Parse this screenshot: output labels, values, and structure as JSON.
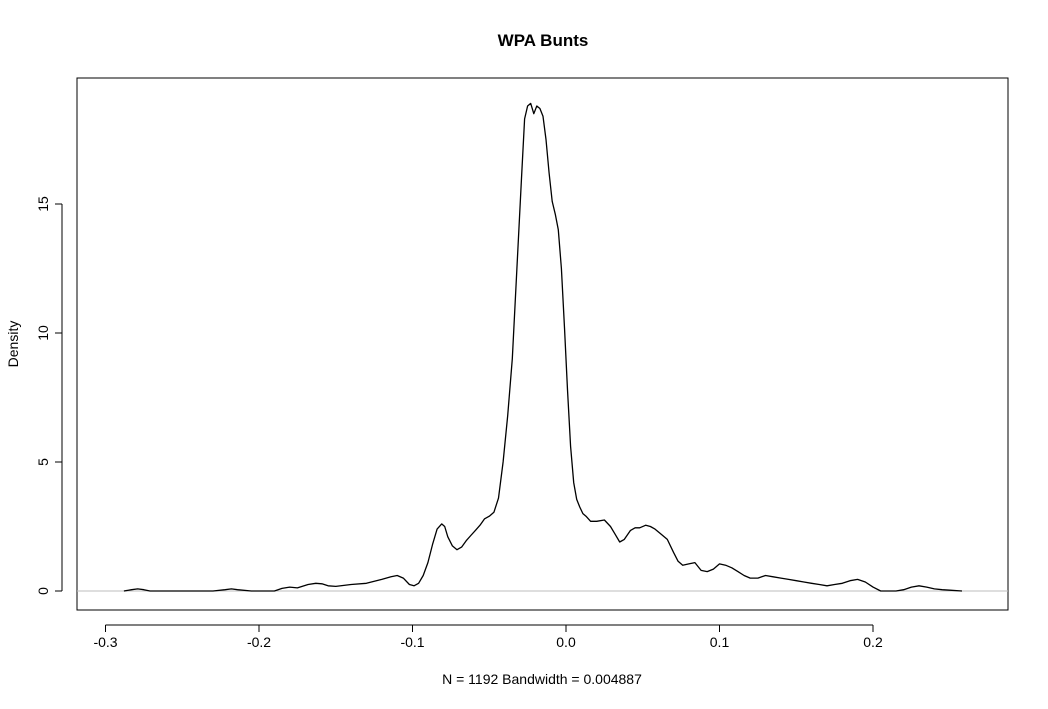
{
  "chart_data": {
    "type": "line",
    "title": "WPA Bunts",
    "xlabel": "N = 1192   Bandwidth = 0.004887",
    "ylabel": "Density",
    "xlim": [
      -0.3,
      0.3
    ],
    "ylim": [
      0,
      19.0
    ],
    "x_ticks": [
      -0.3,
      -0.2,
      -0.1,
      0.0,
      0.1,
      0.2
    ],
    "x_tick_labels": [
      "-0.3",
      "-0.2",
      "-0.1",
      "0.0",
      "0.1",
      "0.2"
    ],
    "y_ticks": [
      0,
      5,
      10,
      15
    ],
    "y_tick_labels": [
      "0",
      "5",
      "10",
      "15"
    ],
    "zero_line": true,
    "grid": false,
    "colors": {
      "line": "#000000",
      "zero_line": "#bebebe",
      "frame": "#000000"
    },
    "series": [
      {
        "x": [
          -0.288,
          -0.283,
          -0.279,
          -0.275,
          -0.271,
          -0.265,
          -0.25,
          -0.23,
          -0.222,
          -0.218,
          -0.214,
          -0.205,
          -0.19,
          -0.185,
          -0.18,
          -0.175,
          -0.168,
          -0.163,
          -0.159,
          -0.155,
          -0.15,
          -0.14,
          -0.13,
          -0.12,
          -0.114,
          -0.11,
          -0.106,
          -0.102,
          -0.099,
          -0.096,
          -0.093,
          -0.09,
          -0.087,
          -0.084,
          -0.081,
          -0.079,
          -0.077,
          -0.074,
          -0.071,
          -0.068,
          -0.065,
          -0.062,
          -0.059,
          -0.056,
          -0.053,
          -0.05,
          -0.047,
          -0.044,
          -0.041,
          -0.038,
          -0.035,
          -0.032,
          -0.029,
          -0.027,
          -0.025,
          -0.023,
          -0.021,
          -0.019,
          -0.017,
          -0.015,
          -0.013,
          -0.011,
          -0.009,
          -0.007,
          -0.005,
          -0.003,
          -0.001,
          0.001,
          0.003,
          0.005,
          0.007,
          0.009,
          0.011,
          0.013,
          0.016,
          0.02,
          0.025,
          0.029,
          0.032,
          0.035,
          0.038,
          0.042,
          0.045,
          0.048,
          0.052,
          0.055,
          0.058,
          0.062,
          0.066,
          0.07,
          0.073,
          0.076,
          0.08,
          0.084,
          0.088,
          0.092,
          0.096,
          0.1,
          0.104,
          0.108,
          0.112,
          0.116,
          0.12,
          0.125,
          0.13,
          0.135,
          0.14,
          0.145,
          0.15,
          0.155,
          0.16,
          0.165,
          0.17,
          0.175,
          0.18,
          0.185,
          0.19,
          0.195,
          0.2,
          0.205,
          0.21,
          0.215,
          0.22,
          0.225,
          0.23,
          0.235,
          0.24,
          0.245,
          0.25,
          0.258
        ],
        "y": [
          0.0,
          0.05,
          0.08,
          0.05,
          0.0,
          0.0,
          0.0,
          0.0,
          0.05,
          0.08,
          0.05,
          0.0,
          0.0,
          0.1,
          0.15,
          0.12,
          0.25,
          0.3,
          0.28,
          0.2,
          0.18,
          0.25,
          0.3,
          0.45,
          0.55,
          0.6,
          0.5,
          0.25,
          0.2,
          0.3,
          0.6,
          1.1,
          1.8,
          2.4,
          2.6,
          2.5,
          2.1,
          1.75,
          1.6,
          1.7,
          1.95,
          2.15,
          2.35,
          2.55,
          2.8,
          2.9,
          3.05,
          3.6,
          5.0,
          6.8,
          9.0,
          12.5,
          16.0,
          18.3,
          18.8,
          18.9,
          18.5,
          18.8,
          18.7,
          18.4,
          17.5,
          16.2,
          15.1,
          14.6,
          14.0,
          12.5,
          10.2,
          7.8,
          5.6,
          4.2,
          3.55,
          3.25,
          3.0,
          2.9,
          2.7,
          2.7,
          2.75,
          2.5,
          2.2,
          1.9,
          2.0,
          2.35,
          2.45,
          2.45,
          2.55,
          2.5,
          2.4,
          2.2,
          2.0,
          1.5,
          1.15,
          1.0,
          1.05,
          1.1,
          0.8,
          0.75,
          0.85,
          1.05,
          1.0,
          0.9,
          0.75,
          0.6,
          0.5,
          0.5,
          0.6,
          0.55,
          0.5,
          0.45,
          0.4,
          0.35,
          0.3,
          0.25,
          0.2,
          0.25,
          0.3,
          0.4,
          0.45,
          0.35,
          0.15,
          0.0,
          0.0,
          0.0,
          0.05,
          0.15,
          0.2,
          0.15,
          0.08,
          0.05,
          0.03,
          0.0
        ]
      }
    ]
  }
}
